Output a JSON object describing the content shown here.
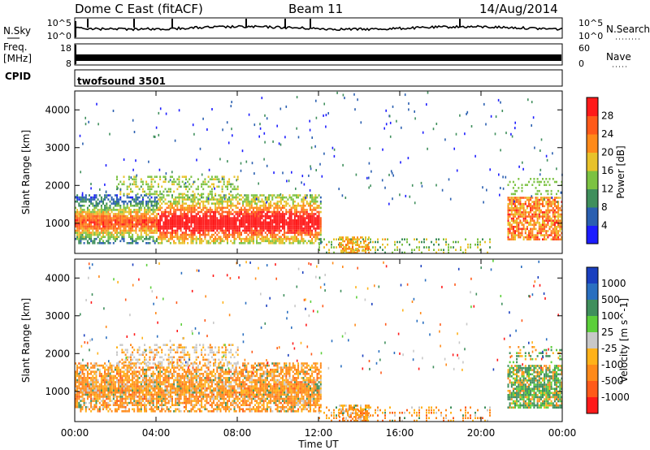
{
  "header": {
    "site": "Dome C East (fitACF)",
    "beam": "Beam 11",
    "date": "14/Aug/2014"
  },
  "nsky_panel": {
    "left_label": "N.Sky",
    "right_label": "N.Search",
    "left_ticks": [
      "10^5",
      "10^0"
    ],
    "right_ticks": [
      "10^5",
      "10^0"
    ]
  },
  "freq_panel": {
    "left_label_1": "Freq.",
    "left_label_2": "[MHz]",
    "right_label": "Nave",
    "left_ticks": [
      "18",
      "8"
    ],
    "right_ticks": [
      "60",
      "0"
    ]
  },
  "cpid_panel": {
    "label": "CPID",
    "value": "twofsound 3501"
  },
  "chart_data": [
    {
      "type": "heatmap",
      "name": "power",
      "ylabel": "Slant Range [km]",
      "ylim": [
        200,
        4500
      ],
      "yticks": [
        "1000",
        "2000",
        "3000",
        "4000"
      ],
      "colorbar_label": "Power [dB]",
      "colorbar_ticks": [
        "4",
        "8",
        "12",
        "16",
        "20",
        "24",
        "28"
      ],
      "colorbar_colors": [
        "#1c1cff",
        "#2a5fb0",
        "#3f8f5c",
        "#7cc242",
        "#e8c22a",
        "#ff8a1a",
        "#ff5a1a",
        "#ff1a1a"
      ]
    },
    {
      "type": "heatmap",
      "name": "velocity",
      "ylabel": "Slant Range [km]",
      "ylim": [
        200,
        4500
      ],
      "yticks": [
        "1000",
        "2000",
        "3000",
        "4000"
      ],
      "colorbar_label": "Velocity [m s^-1]",
      "colorbar_ticks": [
        "1000",
        "500",
        "100",
        "25",
        "-25",
        "-100",
        "-500",
        "-1000"
      ],
      "colorbar_colors": [
        "#1a3fbf",
        "#2a6fc0",
        "#3f8f5c",
        "#5ccf3a",
        "#c8c8c8",
        "#ffb21a",
        "#ff8a1a",
        "#ff5a1a",
        "#ff1a1a"
      ]
    }
  ],
  "x_axis": {
    "label": "Time UT",
    "ticks": [
      "00:00",
      "04:00",
      "08:00",
      "12:00",
      "16:00",
      "20:00",
      "00:00"
    ]
  }
}
